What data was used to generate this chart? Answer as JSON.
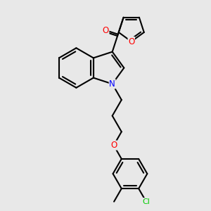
{
  "bg_color": "#e8e8e8",
  "bond_color": "#000000",
  "atom_colors": {
    "O": "#ff0000",
    "N": "#0000ff",
    "Cl": "#00cc00",
    "C": "#000000"
  },
  "bond_width": 1.5,
  "figsize": [
    3.0,
    3.0
  ],
  "dpi": 100,
  "xlim": [
    0,
    10
  ],
  "ylim": [
    0,
    10
  ]
}
